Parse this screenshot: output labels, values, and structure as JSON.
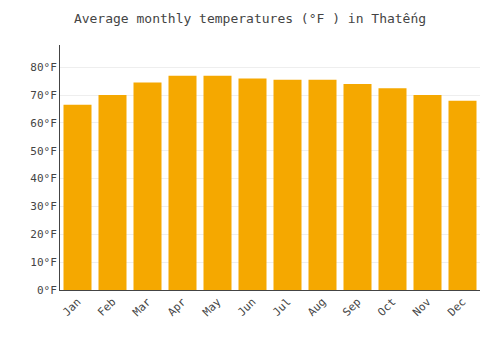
{
  "chart_data": {
    "type": "bar",
    "title": "Average monthly temperatures (°F ) in Thatếng",
    "categories": [
      "Jan",
      "Feb",
      "Mar",
      "Apr",
      "May",
      "Jun",
      "Jul",
      "Aug",
      "Sep",
      "Oct",
      "Nov",
      "Dec"
    ],
    "values": [
      66.5,
      70.0,
      74.5,
      77.0,
      77.0,
      76.0,
      75.5,
      75.5,
      74.0,
      72.5,
      70.0,
      68.0
    ],
    "color": "#F5A800",
    "ylim": [
      0,
      88
    ],
    "yticks": [
      {
        "value": 0,
        "label": "0°F"
      },
      {
        "value": 10,
        "label": "10°F"
      },
      {
        "value": 20,
        "label": "20°F"
      },
      {
        "value": 30,
        "label": "30°F"
      },
      {
        "value": 40,
        "label": "40°F"
      },
      {
        "value": 50,
        "label": "50°F"
      },
      {
        "value": 60,
        "label": "60°F"
      },
      {
        "value": 70,
        "label": "70°F"
      },
      {
        "value": 80,
        "label": "80°F"
      }
    ],
    "grid": true
  }
}
